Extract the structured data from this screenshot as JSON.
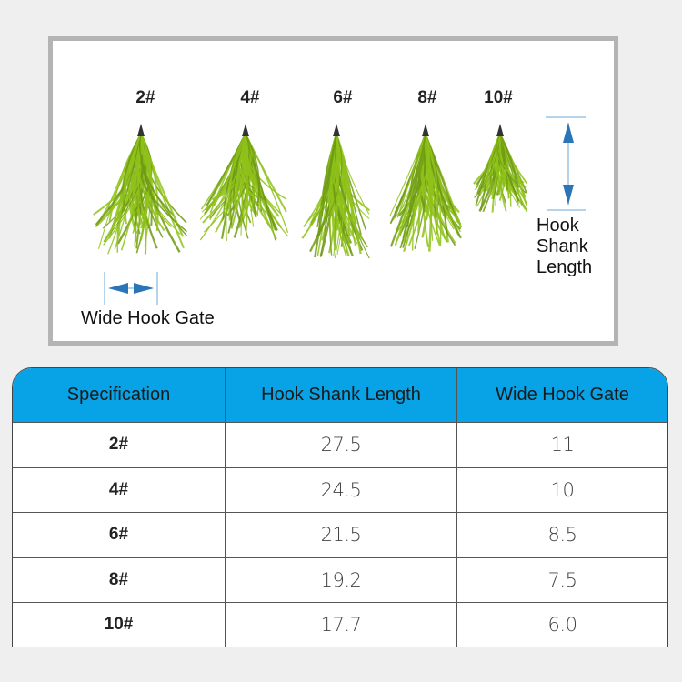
{
  "photo": {
    "sizes": [
      "2#",
      "4#",
      "6#",
      "8#",
      "10#"
    ],
    "gate_label": "Wide Hook Gate",
    "shank_label": [
      "Hook",
      "Shank",
      "Length"
    ],
    "lure_color": "#8fc21a",
    "arrow_color": "#2a74b8",
    "arrow_icons": [
      "double-arrow-horizontal-icon",
      "double-arrow-vertical-icon"
    ]
  },
  "table": {
    "header_color": "#08a3e6",
    "headers": [
      "Specification",
      "Hook Shank Length",
      "Wide Hook Gate"
    ],
    "rows": [
      {
        "spec": "2#",
        "shank": "27.5",
        "gate": "11"
      },
      {
        "spec": "4#",
        "shank": "24.5",
        "gate": "10"
      },
      {
        "spec": "6#",
        "shank": "21.5",
        "gate": "8.5"
      },
      {
        "spec": "8#",
        "shank": "19.2",
        "gate": "7.5"
      },
      {
        "spec": "10#",
        "shank": "17.7",
        "gate": "6.0"
      }
    ]
  }
}
